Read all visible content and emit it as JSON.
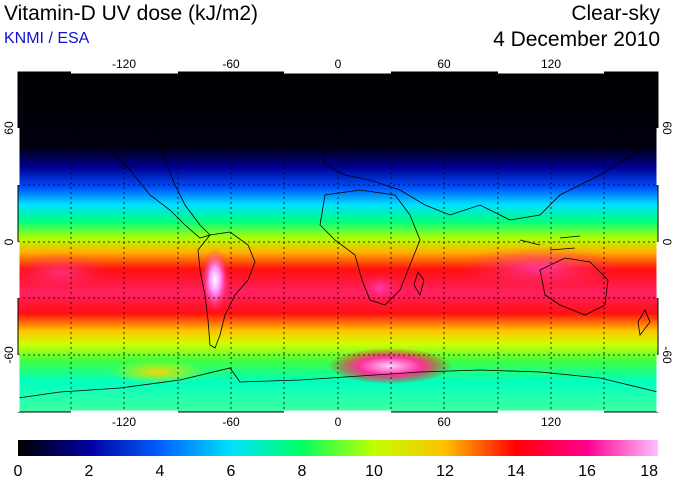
{
  "header": {
    "title": "Vitamin-D UV dose (kJ/m2)",
    "source": "KNMI / ESA",
    "condition": "Clear-sky",
    "date": "4 December 2010"
  },
  "map": {
    "lon_ticks": [
      "-120",
      "-60",
      "0",
      "60",
      "120"
    ],
    "lat_ticks_left": [
      "60",
      "0",
      "-60"
    ],
    "lat_ticks_right": [
      "60",
      "0",
      "-60"
    ],
    "lon_range": [
      -180,
      180
    ],
    "lat_range": [
      -90,
      90
    ],
    "grid": "dotted 30-degree graticule"
  },
  "colorbar": {
    "labels": [
      "0",
      "2",
      "4",
      "6",
      "8",
      "10",
      "12",
      "14",
      "16",
      "18"
    ],
    "min": 0,
    "max": 18,
    "stops": [
      "#000000",
      "#0000a0",
      "#0060ff",
      "#00e0ff",
      "#00ff60",
      "#c0ff00",
      "#ffc000",
      "#ff0000",
      "#ff0090",
      "#ffc0ff"
    ]
  }
}
